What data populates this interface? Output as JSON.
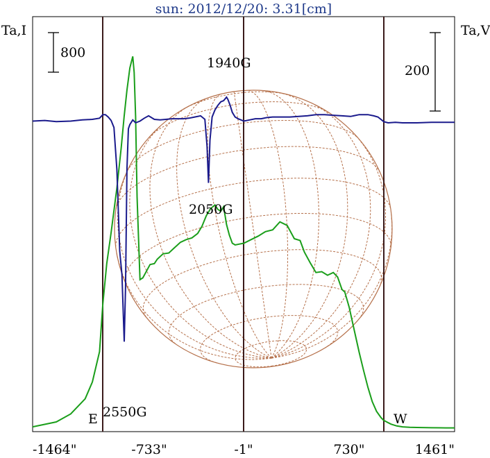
{
  "chart_data": {
    "type": "line",
    "title": "sun: 2012/12/20: 3.31[cm]",
    "left_axis_label": "Ta,I",
    "right_axis_label": "Ta,V",
    "scale_left": "800",
    "scale_right": "200",
    "x_ticks": [
      {
        "label": "-1464\"",
        "value": -1464
      },
      {
        "label": "-733\"",
        "value": -733
      },
      {
        "label": "-1\"",
        "value": -1
      },
      {
        "label": "730\"",
        "value": 730
      },
      {
        "label": "1461\"",
        "value": 1461
      }
    ],
    "xlim": [
      -1464,
      1461
    ],
    "limb_markers": [
      {
        "label": "E",
        "x": -977
      },
      {
        "label": "W",
        "x": 968
      }
    ],
    "annotations": [
      {
        "label": "1940G",
        "x": -122
      },
      {
        "label": "2050G",
        "x": -245
      },
      {
        "label": "2550G",
        "x": -829
      }
    ],
    "series": [
      {
        "key": "intensity",
        "color": "#1a9e1a",
        "x": [
          -1464,
          -1300,
          -1200,
          -1100,
          -1050,
          -1000,
          -977,
          -950,
          -920,
          -880,
          -850,
          -830,
          -810,
          -790,
          -770,
          -760,
          -750,
          -740,
          -720,
          -700,
          -680,
          -650,
          -620,
          -600,
          -560,
          -520,
          -480,
          -440,
          -400,
          -360,
          -320,
          -290,
          -260,
          -230,
          -200,
          -180,
          -160,
          -140,
          -120,
          -100,
          -80,
          -60,
          -30,
          0,
          50,
          100,
          150,
          200,
          250,
          300,
          350,
          390,
          420,
          460,
          500,
          540,
          580,
          620,
          650,
          680,
          700,
          730,
          760,
          800,
          830,
          860,
          890,
          920,
          950,
          968,
          990,
          1020,
          1060,
          1100,
          1150,
          1200,
          1300,
          1400,
          1461
        ],
        "y": [
          15,
          70,
          160,
          330,
          520,
          860,
          1400,
          1850,
          2200,
          2700,
          3150,
          3500,
          3800,
          4050,
          4180,
          4000,
          3500,
          2600,
          1670,
          1690,
          1750,
          1840,
          1850,
          1900,
          1960,
          1970,
          2030,
          2090,
          2120,
          2140,
          2190,
          2270,
          2390,
          2470,
          2510,
          2460,
          2440,
          2490,
          2290,
          2170,
          2080,
          2060,
          2070,
          2080,
          2120,
          2160,
          2210,
          2230,
          2320,
          2280,
          2130,
          2110,
          1980,
          1860,
          1750,
          1760,
          1720,
          1750,
          1700,
          1560,
          1530,
          1360,
          1140,
          850,
          650,
          460,
          300,
          190,
          120,
          90,
          70,
          45,
          25,
          15,
          10,
          8,
          5,
          3,
          3
        ],
        "ylim": [
          0,
          4370
        ]
      },
      {
        "key": "circular_polarization",
        "color": "#1a1a8c",
        "x": [
          -1464,
          -1380,
          -1300,
          -1200,
          -1120,
          -1050,
          -1000,
          -977,
          -960,
          -940,
          -920,
          -900,
          -880,
          -860,
          -845,
          -835,
          -829,
          -820,
          -810,
          -800,
          -790,
          -770,
          -750,
          -720,
          -690,
          -660,
          -620,
          -580,
          -540,
          -500,
          -460,
          -420,
          -380,
          -340,
          -300,
          -270,
          -255,
          -245,
          -235,
          -220,
          -200,
          -180,
          -160,
          -140,
          -120,
          -110,
          -95,
          -80,
          -60,
          -40,
          -20,
          0,
          40,
          80,
          120,
          160,
          200,
          260,
          320,
          380,
          440,
          500,
          560,
          620,
          680,
          740,
          800,
          860,
          900,
          930,
          950,
          970,
          1000,
          1050,
          1100,
          1200,
          1300,
          1400,
          1461
        ],
        "y": [
          3,
          4,
          2,
          3,
          5,
          6,
          8,
          14,
          14,
          10,
          4,
          -8,
          -80,
          -220,
          -260,
          -330,
          -375,
          -280,
          -80,
          -10,
          -3,
          5,
          0,
          3,
          8,
          12,
          6,
          5,
          6,
          7,
          7,
          7,
          8,
          10,
          12,
          6,
          -40,
          -103,
          -30,
          10,
          22,
          30,
          36,
          38,
          44,
          40,
          30,
          18,
          10,
          7,
          5,
          3,
          5,
          7,
          7,
          9,
          10,
          10,
          10,
          11,
          12,
          14,
          14,
          13,
          12,
          11,
          14,
          14,
          12,
          10,
          6,
          2,
          0,
          1,
          0,
          0,
          1,
          1,
          1
        ],
        "ylim": [
          -390,
          80
        ]
      }
    ],
    "colors": {
      "intensity": "#1a9e1a",
      "circular_polarization": "#1a1a8c",
      "solar_disk": "#b5704a",
      "guide_lines": "#3a1a1a"
    }
  }
}
